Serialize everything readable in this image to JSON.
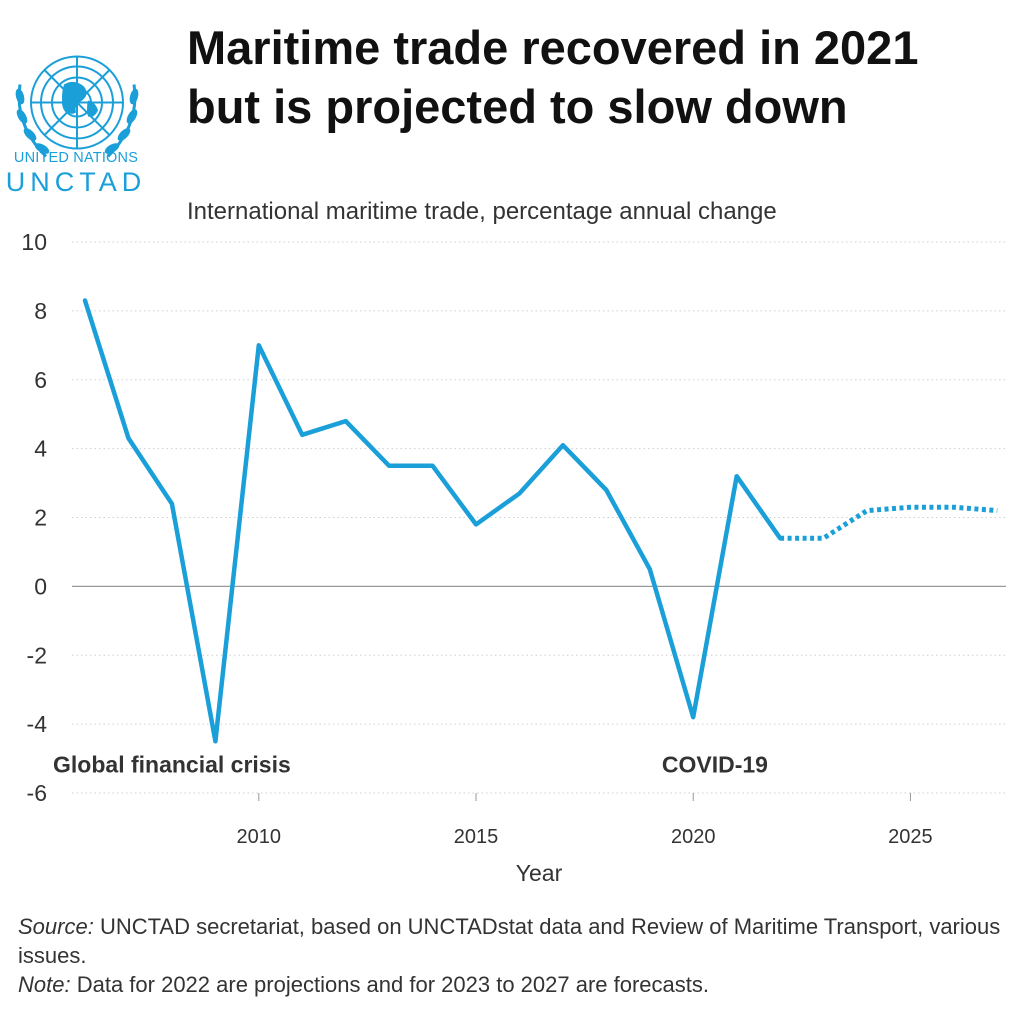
{
  "header": {
    "logo_line1": "UNITED NATIONS",
    "logo_line2": "UNCTAD",
    "title": "Maritime trade recovered in 2021 but is projected to slow down",
    "subtitle": "International maritime trade, percentage annual change"
  },
  "footer": {
    "source_label": "Source:",
    "source_text": "UNCTAD secretariat, based on UNCTADstat data and Review of Maritime Transport, various issues.",
    "note_label": "Note:",
    "note_text": "Data for 2022 are projections and for 2023 to 2027 are forecasts."
  },
  "colors": {
    "line": "#1a9fd9",
    "logo": "#1a9fd9"
  },
  "chart_data": {
    "type": "line",
    "title": "Maritime trade recovered in 2021 but is projected to slow down",
    "subtitle": "International maritime trade, percentage annual change",
    "xlabel": "Year",
    "ylabel": "",
    "xlim": [
      2005.7,
      2027.2
    ],
    "ylim": [
      -6,
      10
    ],
    "yticks": [
      10,
      8,
      6,
      4,
      2,
      0,
      -2,
      -4,
      -6
    ],
    "xticks": [
      2010,
      2015,
      2020,
      2025
    ],
    "grid": true,
    "series": [
      {
        "style": "solid",
        "x": [
          2006,
          2007,
          2008,
          2009,
          2010,
          2011,
          2012,
          2013,
          2014,
          2015,
          2016,
          2017,
          2018,
          2019,
          2020,
          2021,
          2022
        ],
        "values": [
          8.3,
          4.3,
          2.4,
          -4.5,
          7.0,
          4.4,
          4.8,
          3.5,
          3.5,
          1.8,
          2.7,
          4.1,
          2.8,
          0.5,
          -3.8,
          3.2,
          1.4
        ]
      },
      {
        "style": "dotted",
        "x": [
          2022,
          2023,
          2024,
          2025,
          2026,
          2027
        ],
        "values": [
          1.4,
          1.4,
          2.2,
          2.3,
          2.3,
          2.2
        ]
      }
    ],
    "annotations": [
      {
        "text": "Global financial crisis",
        "x": 2008,
        "y": -5.4
      },
      {
        "text": "COVID-19",
        "x": 2020.5,
        "y": -5.4
      }
    ]
  }
}
